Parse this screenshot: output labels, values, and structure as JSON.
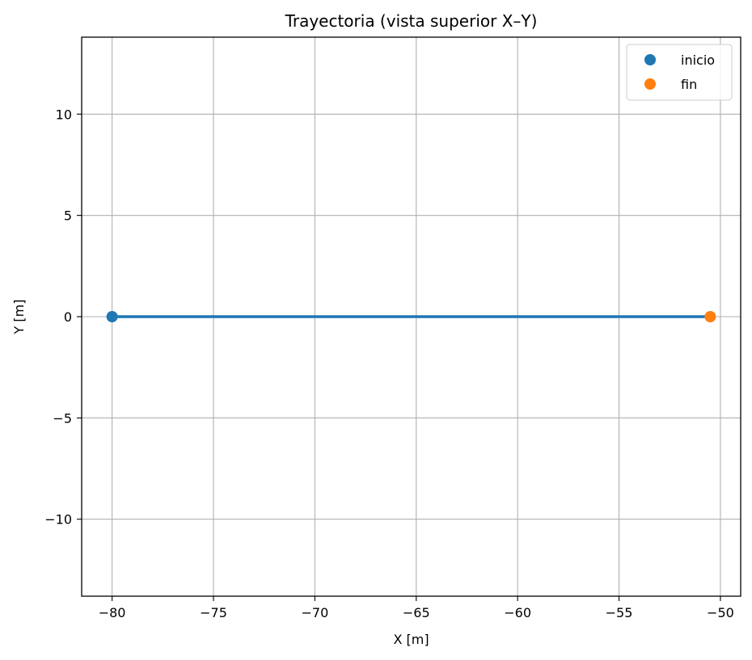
{
  "chart_data": {
    "type": "line",
    "title": "Trayectoria (vista superior X–Y)",
    "xlabel": "X [m]",
    "ylabel": "Y [m]",
    "xlim": [
      -81.5,
      -49.0
    ],
    "ylim": [
      -13.8,
      13.8
    ],
    "xticks": [
      -80,
      -75,
      -70,
      -65,
      -60,
      -55,
      -50
    ],
    "yticks": [
      -10,
      -5,
      0,
      5,
      10
    ],
    "xtick_labels": [
      "−80",
      "−75",
      "−70",
      "−65",
      "−60",
      "−55",
      "−50"
    ],
    "ytick_labels": [
      "−10",
      "−5",
      "0",
      "5",
      "10"
    ],
    "grid": true,
    "legend_position": "top-right",
    "series": [
      {
        "x": [
          -80.0,
          -50.5
        ],
        "y": [
          0,
          0
        ],
        "color": "#1f77b4"
      }
    ],
    "markers": [
      {
        "name": "inicio",
        "x": -80.0,
        "y": 0,
        "color": "#1f77b4"
      },
      {
        "name": "fin",
        "x": -50.5,
        "y": 0,
        "color": "#ff7f0e"
      }
    ]
  }
}
